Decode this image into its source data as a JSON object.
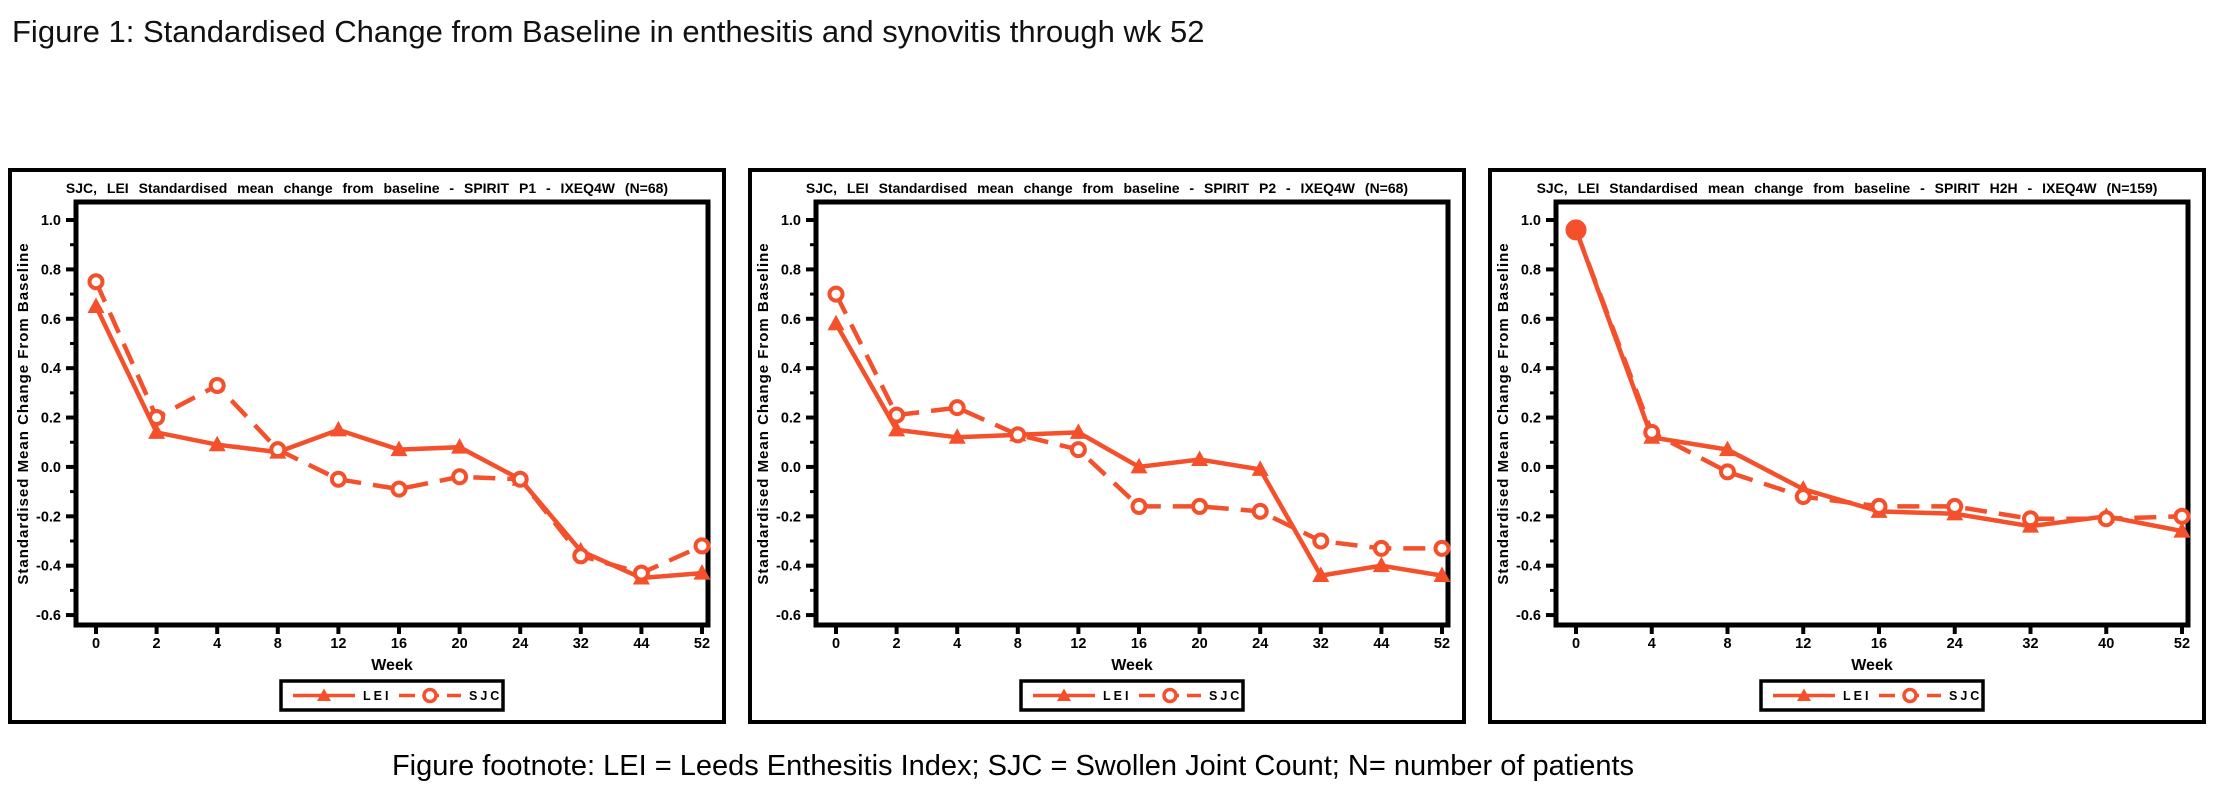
{
  "figure_title": "Figure 1: Standardised Change from Baseline in enthesitis and synovitis through wk 52",
  "footnote": "Figure footnote: LEI = Leeds Enthesitis Index; SJC = Swollen Joint Count; N= number of patients",
  "accent_color": "#F4502B",
  "text_color": "#000000",
  "chart_data": [
    {
      "type": "line",
      "title": "SJC, LEI Standardised mean change from baseline - SPIRIT P1 - IXEQ4W (N=68)",
      "study": "SPIRIT P1",
      "n_patients": 68,
      "xlabel": "Week",
      "ylabel": "Standardised Mean Change From Baseline",
      "categories": [
        0,
        2,
        4,
        8,
        12,
        16,
        20,
        24,
        32,
        44,
        52
      ],
      "ylim": [
        -0.6,
        1.0
      ],
      "ytick_step": 0.2,
      "grid": false,
      "legend_position": "bottom",
      "series": [
        {
          "name": "LEI",
          "marker": "triangle",
          "line_style": "solid",
          "values": [
            0.65,
            0.14,
            0.09,
            0.06,
            0.15,
            0.07,
            0.08,
            -0.05,
            -0.34,
            -0.45,
            -0.43
          ]
        },
        {
          "name": "SJC",
          "marker": "circle",
          "line_style": "dashed",
          "values": [
            0.75,
            0.2,
            0.33,
            0.07,
            -0.05,
            -0.09,
            -0.04,
            -0.05,
            -0.36,
            -0.43,
            -0.32
          ],
          "filled_points": []
        }
      ]
    },
    {
      "type": "line",
      "title": "SJC, LEI Standardised mean change from baseline - SPIRIT P2 - IXEQ4W (N=68)",
      "study": "SPIRIT P2",
      "n_patients": 68,
      "xlabel": "Week",
      "ylabel": "Standardised Mean Change From Baseline",
      "categories": [
        0,
        2,
        4,
        8,
        12,
        16,
        20,
        24,
        32,
        44,
        52
      ],
      "ylim": [
        -0.6,
        1.0
      ],
      "ytick_step": 0.2,
      "grid": false,
      "legend_position": "bottom",
      "series": [
        {
          "name": "LEI",
          "marker": "triangle",
          "line_style": "solid",
          "values": [
            0.58,
            0.15,
            0.12,
            0.13,
            0.14,
            0.0,
            0.03,
            -0.01,
            -0.44,
            -0.4,
            -0.44
          ]
        },
        {
          "name": "SJC",
          "marker": "circle",
          "line_style": "dashed",
          "values": [
            0.7,
            0.21,
            0.24,
            0.13,
            0.07,
            -0.16,
            -0.16,
            -0.18,
            -0.3,
            -0.33,
            -0.33
          ],
          "filled_points": []
        }
      ]
    },
    {
      "type": "line",
      "title": "SJC, LEI Standardised mean change from baseline - SPIRIT H2H - IXEQ4W (N=159)",
      "study": "SPIRIT H2H",
      "n_patients": 159,
      "xlabel": "Week",
      "ylabel": "Standardised Mean Change From Baseline",
      "categories": [
        0,
        4,
        8,
        12,
        16,
        24,
        32,
        40,
        52
      ],
      "ylim": [
        -0.6,
        1.0
      ],
      "ytick_step": 0.2,
      "grid": false,
      "legend_position": "bottom",
      "series": [
        {
          "name": "LEI",
          "marker": "triangle",
          "line_style": "solid",
          "values": [
            0.96,
            0.12,
            0.07,
            -0.09,
            -0.18,
            -0.19,
            -0.24,
            -0.2,
            -0.26
          ]
        },
        {
          "name": "SJC",
          "marker": "circle",
          "line_style": "dashed",
          "values": [
            0.96,
            0.14,
            -0.02,
            -0.12,
            -0.16,
            -0.16,
            -0.21,
            -0.21,
            -0.2
          ],
          "filled_points": [
            0
          ]
        }
      ]
    }
  ]
}
